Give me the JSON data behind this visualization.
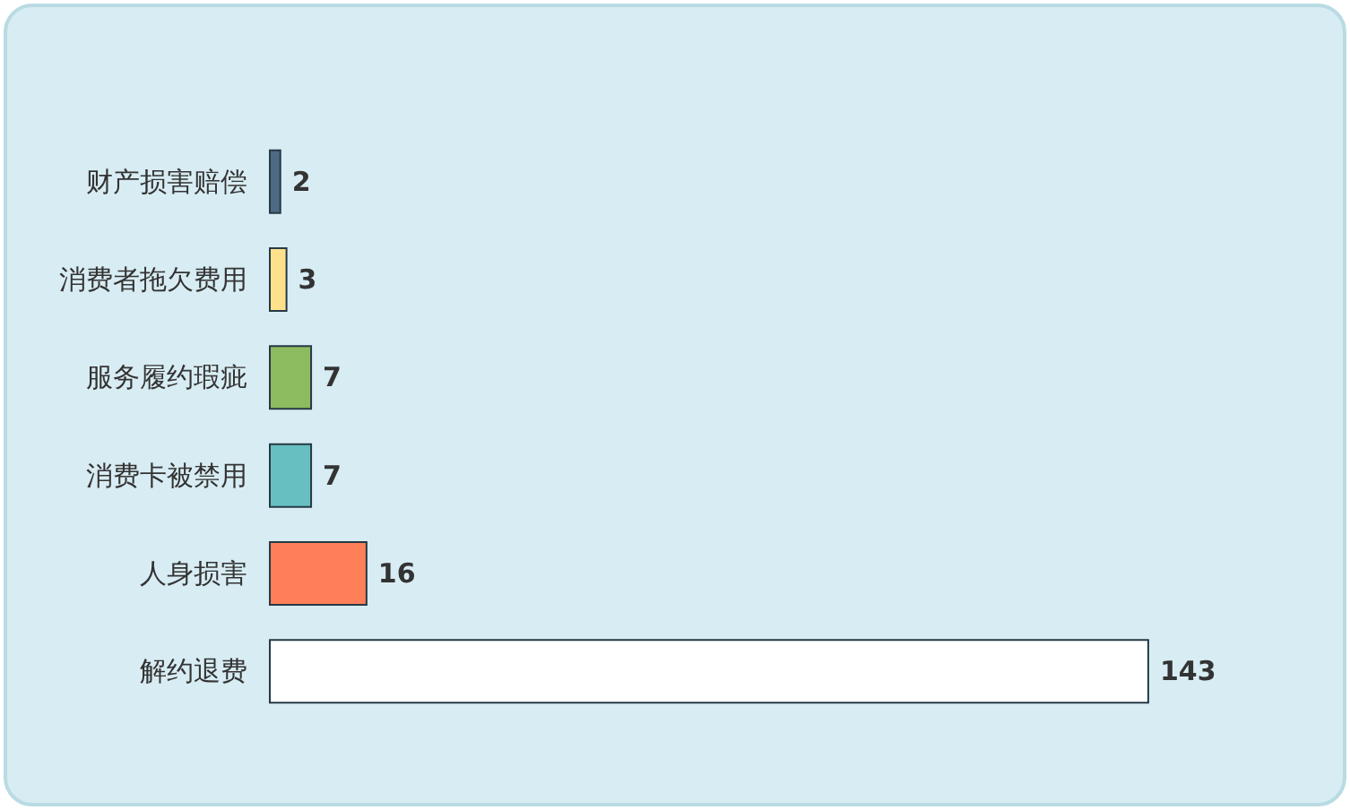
{
  "chart_data": {
    "type": "bar",
    "orientation": "horizontal",
    "categories": [
      "财产损害赔偿",
      "消费者拖欠费用",
      "服务履约瑕疵",
      "消费卡被禁用",
      "人身损害",
      "解约退费"
    ],
    "values": [
      2,
      3,
      7,
      7,
      16,
      143
    ],
    "colors": [
      "#4d6a85",
      "#ffe18c",
      "#8dbb5f",
      "#67bfc1",
      "#ff7f58",
      "#ffffff"
    ],
    "data_labels": true,
    "tick_labels": "y"
  }
}
